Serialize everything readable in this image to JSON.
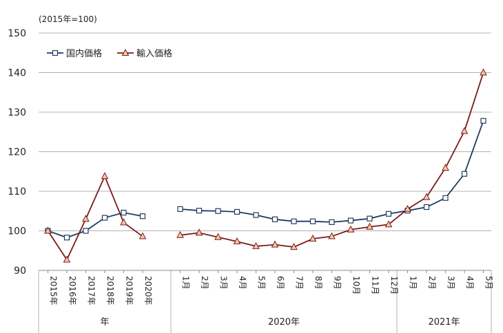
{
  "chart_data": {
    "type": "line",
    "unit_label": "(2015年=100)",
    "ylim": [
      90,
      150
    ],
    "yticks": [
      90,
      100,
      110,
      120,
      130,
      140,
      150
    ],
    "grid": true,
    "legend_position": "top-left",
    "categories": [
      "2015年",
      "2016年",
      "2017年",
      "2018年",
      "2019年",
      "2020年",
      "1月",
      "2月",
      "3月",
      "4月",
      "5月",
      "6月",
      "7月",
      "8月",
      "9月",
      "10月",
      "11月",
      "12月",
      "1月",
      "2月",
      "3月",
      "4月",
      "5月"
    ],
    "groups": [
      {
        "label": "年",
        "count": 6
      },
      {
        "label": "2020年",
        "count": 12
      },
      {
        "label": "2021年",
        "count": 5
      }
    ],
    "series": [
      {
        "name": "国内価格",
        "color": "#1f3b5e",
        "marker": "square",
        "segments": [
          [
            100.0,
            98.3,
            100.0,
            103.3,
            104.6,
            103.7
          ],
          [
            105.5,
            105.1,
            105.0,
            104.8,
            104.0,
            102.9,
            102.4,
            102.4,
            102.2,
            102.6,
            103.1,
            104.3,
            105.1,
            106.0,
            108.3,
            114.4,
            127.8
          ]
        ]
      },
      {
        "name": "輸入価格",
        "color": "#7a1a1a",
        "marker": "triangle",
        "segments": [
          [
            100.0,
            92.7,
            103.0,
            113.8,
            102.1,
            98.6
          ],
          [
            98.9,
            99.5,
            98.4,
            97.3,
            96.1,
            96.5,
            95.9,
            98.0,
            98.6,
            100.3,
            101.0,
            101.6,
            105.5,
            108.5,
            115.9,
            125.2,
            140.0
          ]
        ]
      }
    ]
  }
}
